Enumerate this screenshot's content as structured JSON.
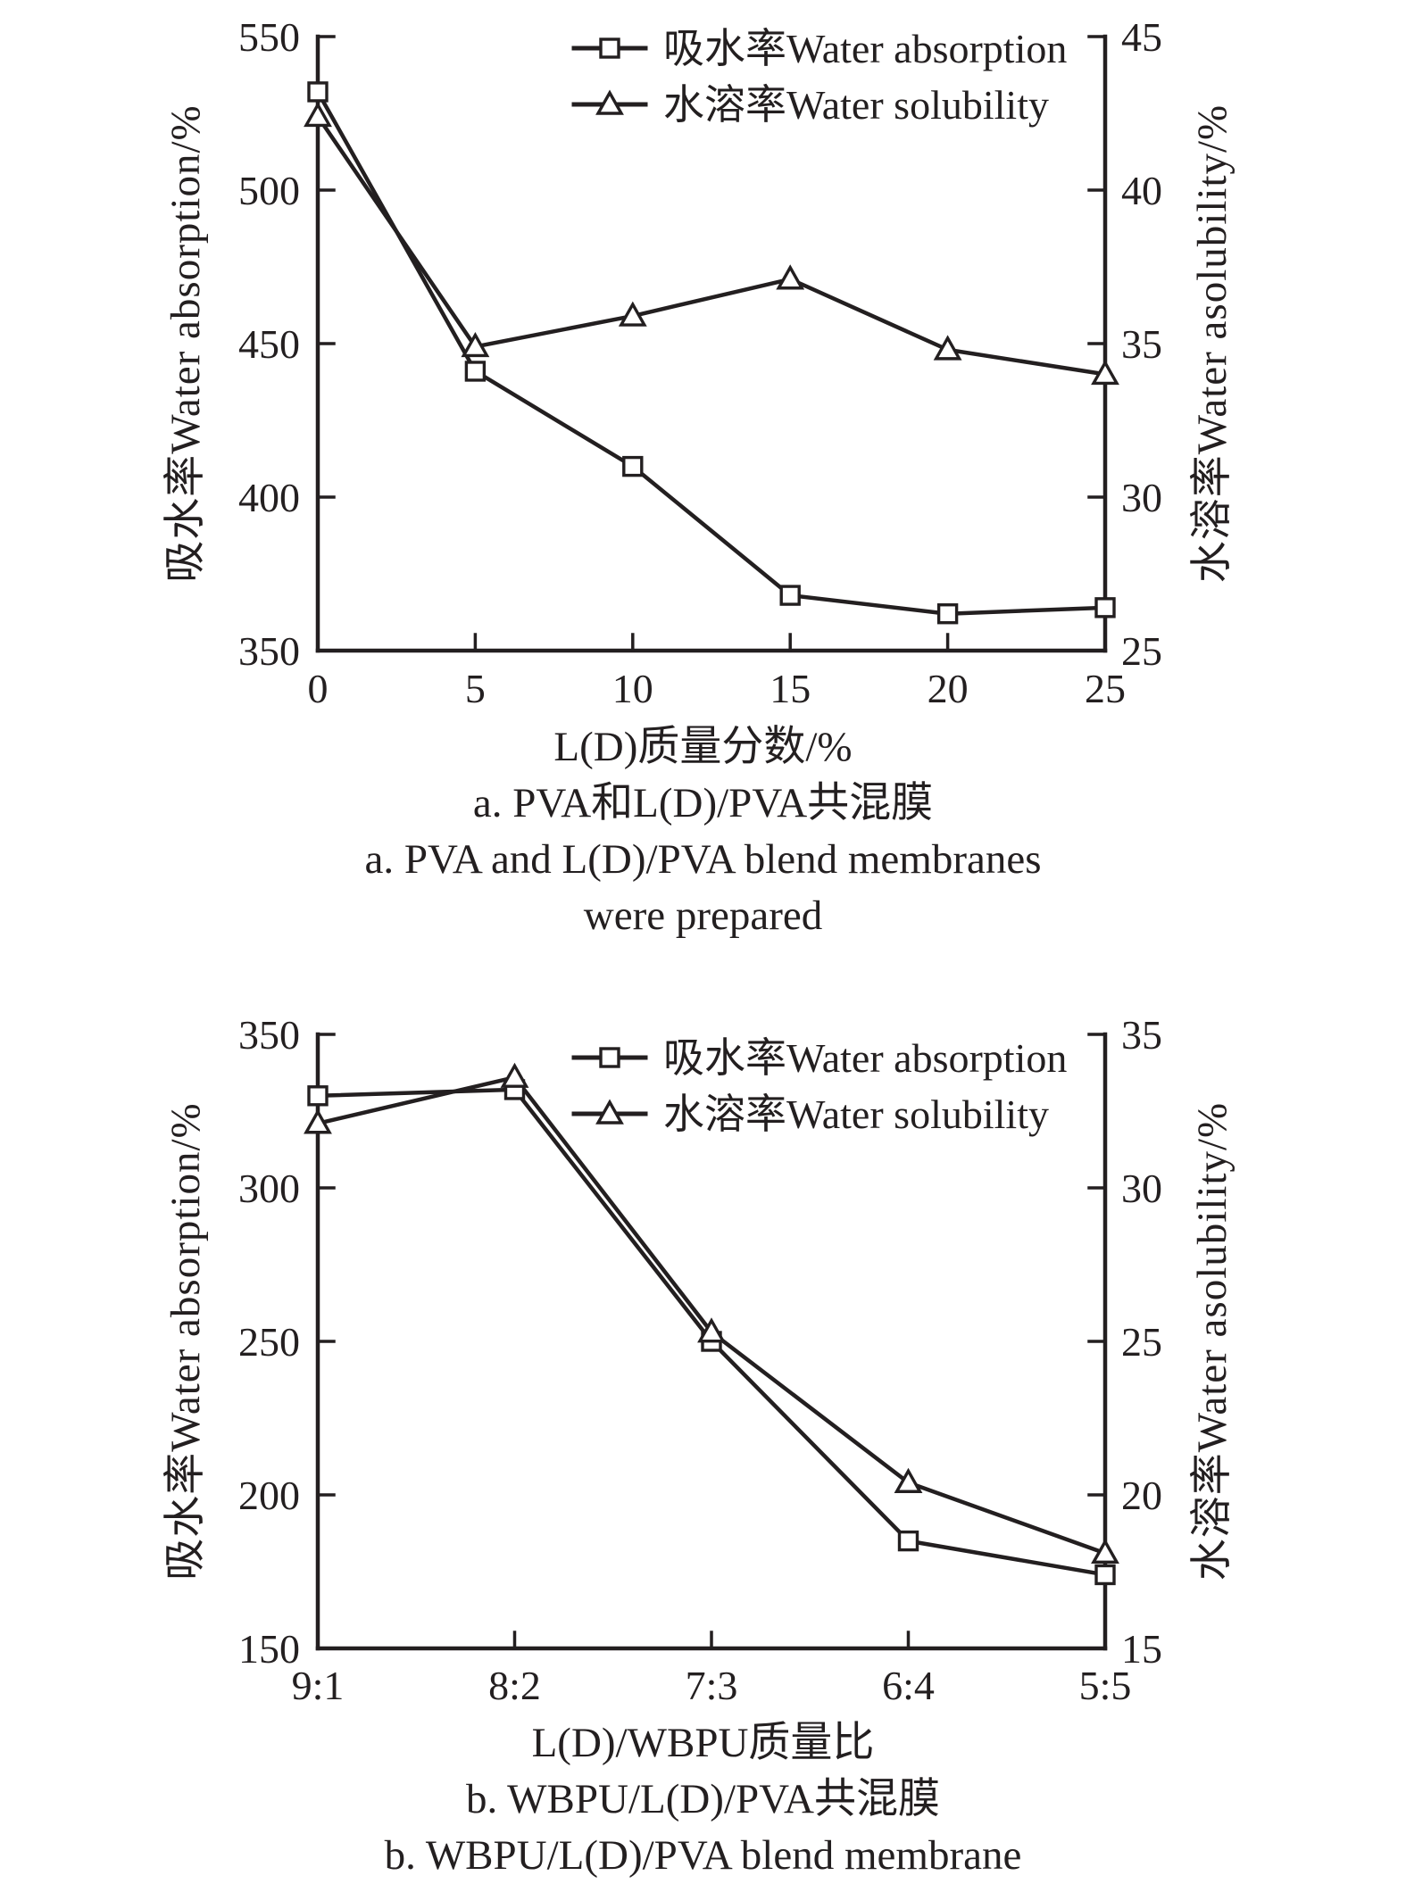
{
  "page": {
    "background": "#ffffff",
    "ink": "#231f20"
  },
  "chart_data": [
    {
      "type": "line",
      "panel": "a",
      "xlabel": "L(D)质量分数/%",
      "x_tick_labels": [
        "0",
        "5",
        "10",
        "15",
        "20",
        "25"
      ],
      "left_ylabel": "吸水率Water absorption/%",
      "right_ylabel": "水溶率Water asolubility/%",
      "left_ylim": [
        350,
        550
      ],
      "left_yticks": [
        350,
        400,
        450,
        500,
        550
      ],
      "right_ylim": [
        25,
        45
      ],
      "right_yticks": [
        25,
        30,
        35,
        40,
        45
      ],
      "grid": false,
      "legend_position": "top-inside",
      "series": [
        {
          "name": "吸水率Water absorption",
          "axis": "left",
          "marker": "square",
          "values": [
            532,
            441,
            410,
            368,
            362,
            364
          ]
        },
        {
          "name": "水溶率Water solubility",
          "axis": "right",
          "marker": "triangle",
          "values": [
            42.4,
            34.9,
            35.9,
            37.1,
            34.8,
            34.0
          ]
        }
      ],
      "captions": [
        "a. PVA和L(D)/PVA共混膜",
        "a. PVA and L(D)/PVA blend membranes",
        "were prepared"
      ]
    },
    {
      "type": "line",
      "panel": "b",
      "xlabel": "L(D)/WBPU质量比",
      "x_tick_labels": [
        "9:1",
        "8:2",
        "7:3",
        "6:4",
        "5:5"
      ],
      "left_ylabel": "吸水率Water absorption/%",
      "right_ylabel": "水溶率Water asolubility/%",
      "left_ylim": [
        150,
        350
      ],
      "left_yticks": [
        150,
        200,
        250,
        300,
        350
      ],
      "right_ylim": [
        15,
        35
      ],
      "right_yticks": [
        15,
        20,
        25,
        30,
        35
      ],
      "grid": false,
      "legend_position": "top-inside",
      "series": [
        {
          "name": "吸水率Water absorption",
          "axis": "left",
          "marker": "square",
          "values": [
            330,
            332,
            250,
            185,
            174
          ]
        },
        {
          "name": "水溶率Water solubility",
          "axis": "right",
          "marker": "triangle",
          "values": [
            32.1,
            33.6,
            25.3,
            20.4,
            18.1
          ]
        }
      ],
      "captions": [
        "b. WBPU/L(D)/PVA共混膜",
        "b. WBPU/L(D)/PVA blend membrane"
      ]
    }
  ]
}
